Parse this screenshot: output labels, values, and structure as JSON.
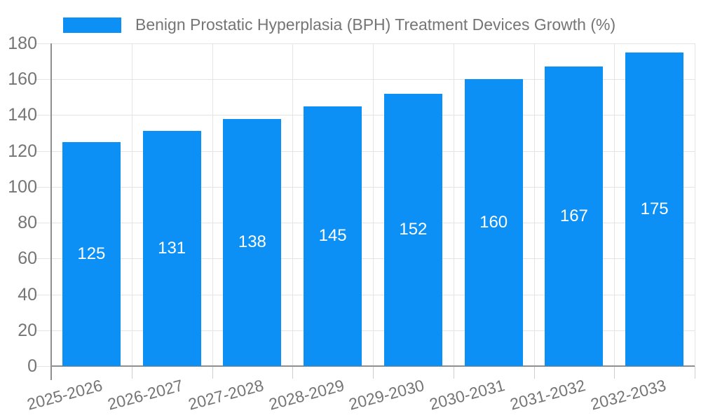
{
  "chart_data": {
    "type": "bar",
    "title": "Benign Prostatic Hyperplasia (BPH) Treatment Devices Growth (%)",
    "categories": [
      "2025-2026",
      "2026-2027",
      "2027-2028",
      "2028-2029",
      "2029-2030",
      "2030-2031",
      "2031-2032",
      "2032-2033"
    ],
    "values": [
      125,
      131,
      138,
      145,
      152,
      160,
      167,
      175
    ],
    "series": [
      {
        "name": "Benign Prostatic Hyperplasia (BPH) Treatment Devices Growth (%)",
        "values": [
          125,
          131,
          138,
          145,
          152,
          160,
          167,
          175
        ]
      }
    ],
    "ylim": [
      0,
      180
    ],
    "yticks": [
      0,
      20,
      40,
      60,
      80,
      100,
      120,
      140,
      160,
      180
    ],
    "grid": true,
    "legend_position": "top-left",
    "value_labels_position": "inside-center",
    "colors": {
      "bar": "#0d90f5",
      "axis_text": "#757575",
      "gridline": "#e4e4e4",
      "axis_line": "#8f8f8f",
      "tick": "#cfcfcf",
      "value_label": "#ffffff",
      "background": "#ffffff"
    }
  }
}
